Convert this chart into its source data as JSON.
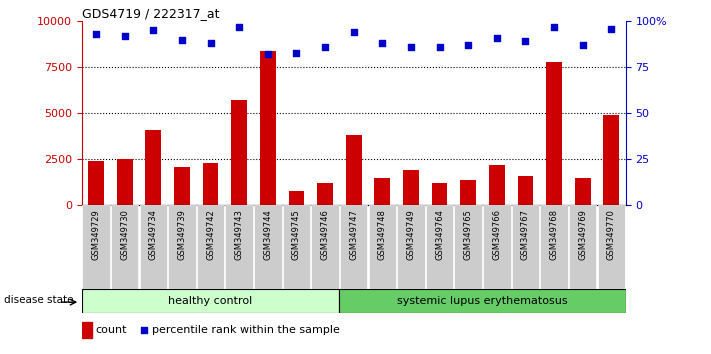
{
  "title": "GDS4719 / 222317_at",
  "samples": [
    "GSM349729",
    "GSM349730",
    "GSM349734",
    "GSM349739",
    "GSM349742",
    "GSM349743",
    "GSM349744",
    "GSM349745",
    "GSM349746",
    "GSM349747",
    "GSM349748",
    "GSM349749",
    "GSM349764",
    "GSM349765",
    "GSM349766",
    "GSM349767",
    "GSM349768",
    "GSM349769",
    "GSM349770"
  ],
  "counts": [
    2400,
    2500,
    4100,
    2100,
    2300,
    5700,
    8400,
    800,
    1200,
    3800,
    1500,
    1900,
    1200,
    1400,
    2200,
    1600,
    7800,
    1500,
    4900
  ],
  "percentiles": [
    93,
    92,
    95,
    90,
    88,
    97,
    82,
    83,
    86,
    94,
    88,
    86,
    86,
    87,
    91,
    89,
    97,
    87,
    96
  ],
  "healthy_count": 9,
  "bar_color": "#cc0000",
  "dot_color": "#0000cc",
  "healthy_bg": "#ccffcc",
  "lupus_bg": "#66cc66",
  "label_healthy": "healthy control",
  "label_lupus": "systemic lupus erythematosus",
  "disease_state_label": "disease state",
  "legend_count": "count",
  "legend_percentile": "percentile rank within the sample",
  "ylim_left": [
    0,
    10000
  ],
  "ylim_right": [
    0,
    100
  ],
  "yticks_left": [
    0,
    2500,
    5000,
    7500,
    10000
  ],
  "ytick_labels_left": [
    "0",
    "2500",
    "5000",
    "7500",
    "10000"
  ],
  "yticks_right": [
    0,
    25,
    50,
    75,
    100
  ],
  "ytick_labels_right": [
    "0",
    "25",
    "50",
    "75",
    "100%"
  ],
  "bg_color": "#ffffff",
  "xtick_bg": "#cccccc"
}
